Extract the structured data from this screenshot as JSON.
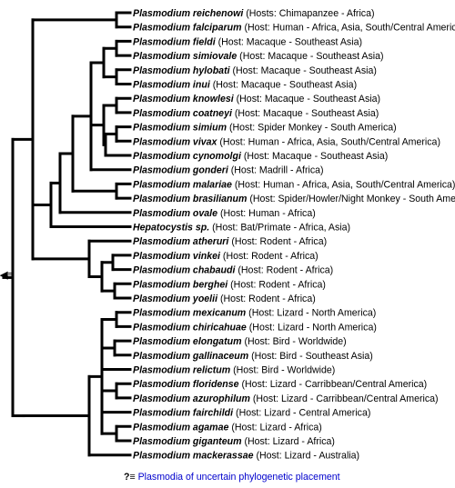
{
  "root_marker": "◀≡",
  "taxa": [
    {
      "name": "Plasmodium reichenowi",
      "host": "(Hosts: Chimapanzee - Africa)"
    },
    {
      "name": "Plasmodium falciparum",
      "host": "(Host: Human - Africa, Asia, South/Central America)"
    },
    {
      "name": "Plasmodium fieldi",
      "host": "(Host: Macaque - Southeast Asia)"
    },
    {
      "name": "Plasmodium simiovale",
      "host": "(Host: Macaque - Southeast Asia)"
    },
    {
      "name": "Plasmodium hylobati",
      "host": "(Host: Macaque - Southeast Asia)"
    },
    {
      "name": "Plasmodium inui",
      "host": "(Host: Macaque - Southeast Asia)"
    },
    {
      "name": "Plasmodium knowlesi",
      "host": "(Host: Macaque - Southeast Asia)"
    },
    {
      "name": "Plasmodium coatneyi",
      "host": "(Host: Macaque - Southeast Asia)"
    },
    {
      "name": "Plasmodium simium",
      "host": "(Host: Spider Monkey - South America)"
    },
    {
      "name": "Plasmodium vivax",
      "host": "(Host: Human - Africa, Asia, South/Central America)"
    },
    {
      "name": "Plasmodium cynomolgi",
      "host": "(Host: Macaque - Southeast Asia)"
    },
    {
      "name": "Plasmodium gonderi",
      "host": "(Host: Madrill - Africa)"
    },
    {
      "name": "Plasmodium malariae",
      "host": "(Host: Human - Africa, Asia, South/Central America)"
    },
    {
      "name": "Plasmodium brasilianum",
      "host": "(Host: Spider/Howler/Night Monkey - South America)"
    },
    {
      "name": "Plasmodium ovale",
      "host": "(Host: Human - Africa)"
    },
    {
      "name": "Hepatocystis sp.",
      "host": "(Host: Bat/Primate - Africa, Asia)"
    },
    {
      "name": "Plasmodium atheruri",
      "host": "(Host: Rodent - Africa)"
    },
    {
      "name": "Plasmodium vinkei",
      "host": "(Host: Rodent - Africa)"
    },
    {
      "name": "Plasmodium chabaudi",
      "host": "(Host: Rodent - Africa)"
    },
    {
      "name": "Plasmodium berghei",
      "host": "(Host: Rodent - Africa)"
    },
    {
      "name": "Plasmodium yoelii",
      "host": "(Host: Rodent - Africa)"
    },
    {
      "name": "Plasmodium mexicanum",
      "host": "(Host: Lizard - North America)"
    },
    {
      "name": "Plasmodium chiricahuae",
      "host": "(Host: Lizard - North America)"
    },
    {
      "name": "Plasmodium elongatum",
      "host": "(Host: Bird - Worldwide)"
    },
    {
      "name": "Plasmodium gallinaceum",
      "host": "(Host: Bird - Southeast Asia)"
    },
    {
      "name": "Plasmodium relictum",
      "host": "(Host: Bird - Worldwide)"
    },
    {
      "name": "Plasmodium floridense",
      "host": "(Host: Lizard - Carribbean/Central America)"
    },
    {
      "name": "Plasmodium azurophilum",
      "host": "(Host: Lizard - Carribbean/Central America)"
    },
    {
      "name": "Plasmodium fairchildi",
      "host": "(Host: Lizard - Central America)"
    },
    {
      "name": "Plasmodium agamae",
      "host": "(Host: Lizard - Africa)"
    },
    {
      "name": "Plasmodium giganteum",
      "host": "(Host: Lizard - Africa)"
    },
    {
      "name": "Plasmodium mackerassae",
      "host": "(Host: Lizard - Australia)"
    }
  ],
  "footnote": {
    "mark": "?≡",
    "text": "Plasmodia of uncertain phylogenetic placement"
  }
}
